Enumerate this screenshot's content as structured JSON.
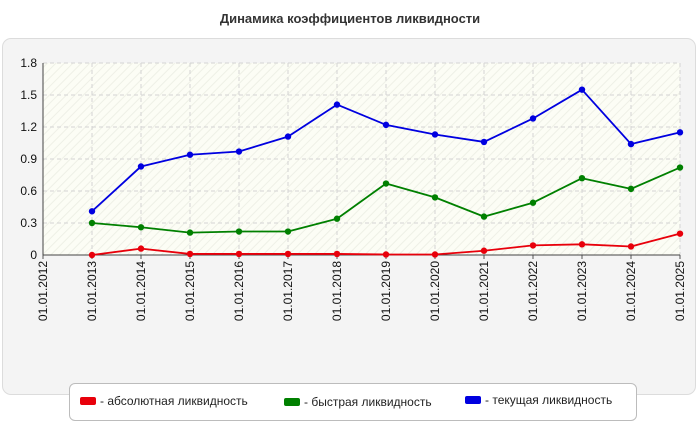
{
  "chart_data": {
    "type": "line",
    "title": "Динамика коэффициентов ликвидности",
    "categories": [
      "01.01.2012",
      "01.01.2013",
      "01.01.2014",
      "01.01.2015",
      "01.01.2016",
      "01.01.2017",
      "01.01.2018",
      "01.01.2019",
      "01.01.2020",
      "01.01.2021",
      "01.01.2022",
      "01.01.2023",
      "01.01.2024",
      "01.01.2025"
    ],
    "ylim": [
      0,
      1.8
    ],
    "yticks": [
      "0",
      "0.3",
      "0.6",
      "0.9",
      "1.2",
      "1.5",
      "1.8"
    ],
    "grid": true,
    "legend_position": "bottom",
    "series": [
      {
        "name": "- абсолютная ликвидность",
        "color": "#e8000b",
        "values": [
          null,
          0.0,
          0.06,
          0.01,
          0.01,
          0.01,
          0.01,
          0.005,
          0.005,
          0.04,
          0.09,
          0.1,
          0.08,
          0.2
        ]
      },
      {
        "name": "- быстрая ликвидность",
        "color": "#008000",
        "values": [
          null,
          0.3,
          0.26,
          0.21,
          0.22,
          0.22,
          0.34,
          0.67,
          0.54,
          0.36,
          0.49,
          0.72,
          0.62,
          0.82
        ]
      },
      {
        "name": "- текущая ликвидность",
        "color": "#0000e0",
        "values": [
          null,
          0.41,
          0.83,
          0.94,
          0.97,
          1.11,
          1.41,
          1.22,
          1.13,
          1.06,
          1.28,
          1.55,
          1.04,
          1.15
        ]
      }
    ]
  }
}
